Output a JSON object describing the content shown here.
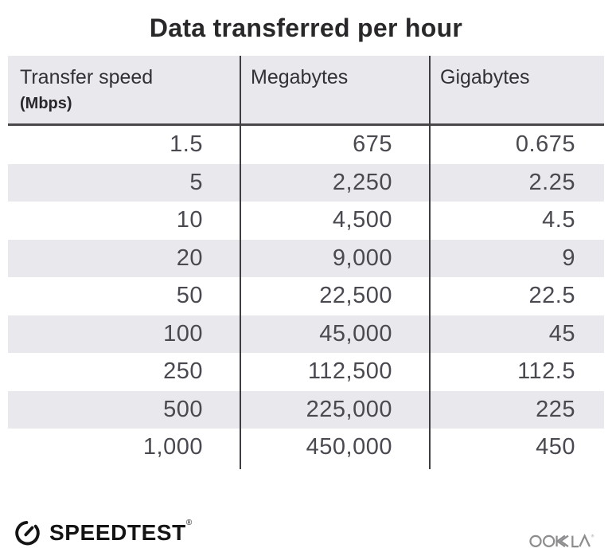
{
  "title": "Data transferred per hour",
  "table": {
    "columns": [
      {
        "label": "Transfer speed",
        "sublabel": "(Mbps)"
      },
      {
        "label": "Megabytes",
        "sublabel": ""
      },
      {
        "label": "Gigabytes",
        "sublabel": ""
      }
    ],
    "rows": [
      [
        "1.5",
        "675",
        "0.675"
      ],
      [
        "5",
        "2,250",
        "2.25"
      ],
      [
        "10",
        "4,500",
        "4.5"
      ],
      [
        "20",
        "9,000",
        "9"
      ],
      [
        "50",
        "22,500",
        "22.5"
      ],
      [
        "100",
        "45,000",
        "45"
      ],
      [
        "250",
        "112,500",
        "112.5"
      ],
      [
        "500",
        "225,000",
        "225"
      ],
      [
        "1,000",
        "450,000",
        "450"
      ]
    ]
  },
  "chart_data": {
    "type": "table",
    "title": "Data transferred per hour",
    "columns": [
      "Transfer speed (Mbps)",
      "Megabytes",
      "Gigabytes"
    ],
    "rows": [
      [
        1.5,
        675,
        0.675
      ],
      [
        5,
        2250,
        2.25
      ],
      [
        10,
        4500,
        4.5
      ],
      [
        20,
        9000,
        9
      ],
      [
        50,
        22500,
        22.5
      ],
      [
        100,
        45000,
        45
      ],
      [
        250,
        112500,
        112.5
      ],
      [
        500,
        225000,
        225
      ],
      [
        1000,
        450000,
        450
      ]
    ],
    "layout": {
      "striped_rows": true,
      "header_background": true,
      "column_dividers": true
    }
  },
  "footer": {
    "brand": "SPEEDTEST",
    "brand_registered": "®",
    "attribution": "OOKLA",
    "attribution_registered": "®"
  },
  "colors": {
    "background": "#ffffff",
    "header_bg": "#e9e8ec",
    "stripe_bg": "#e9e8ec",
    "divider": "#3f3d42",
    "header_border": "#4a484b",
    "title_text": "#29272a",
    "header_text": "#333136",
    "number_text": "#4b4950",
    "brand_black": "#141414",
    "ookla_gray": "#8d8c8e"
  }
}
